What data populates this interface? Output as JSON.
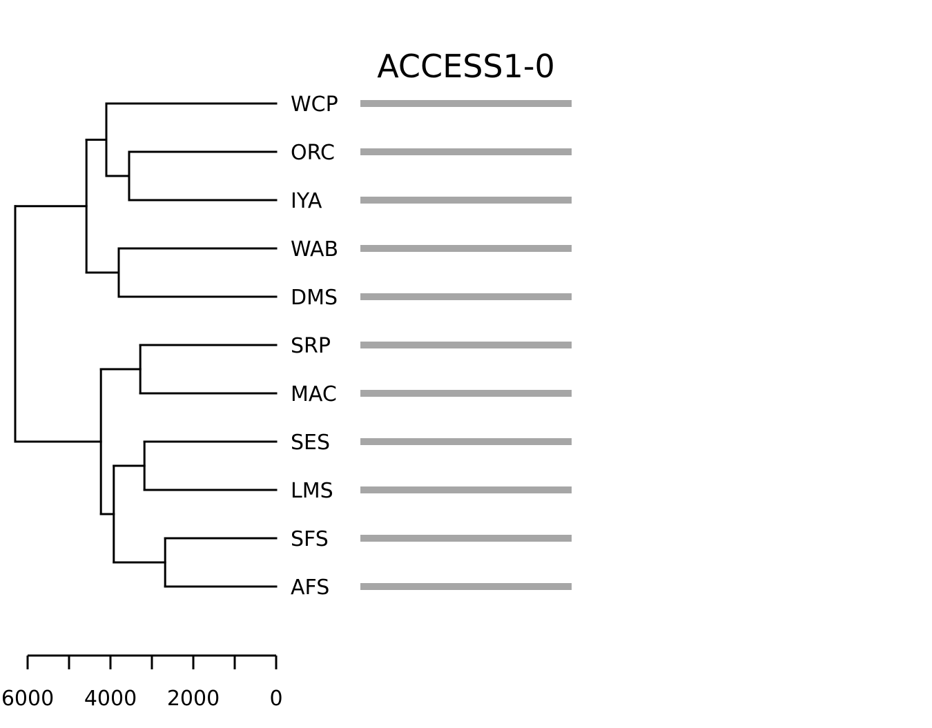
{
  "title": "ACCESS1-0",
  "leaves": [
    "WCP",
    "ORC",
    "IYA",
    "WAB",
    "DMS",
    "SRP",
    "MAC",
    "SES",
    "LMS",
    "SFS",
    "AFS"
  ],
  "tree": {
    "height": 6300,
    "children": [
      {
        "height": 4580,
        "children": [
          {
            "height": 4100,
            "children": [
              {
                "leaf": "WCP"
              },
              {
                "height": 3550,
                "children": [
                  {
                    "leaf": "ORC"
                  },
                  {
                    "leaf": "IYA"
                  }
                ]
              }
            ]
          },
          {
            "height": 3800,
            "children": [
              {
                "leaf": "WAB"
              },
              {
                "leaf": "DMS"
              }
            ]
          }
        ]
      },
      {
        "height": 4230,
        "children": [
          {
            "height": 3280,
            "children": [
              {
                "leaf": "SRP"
              },
              {
                "leaf": "MAC"
              }
            ]
          },
          {
            "height": 3920,
            "children": [
              {
                "height": 3180,
                "children": [
                  {
                    "leaf": "SES"
                  },
                  {
                    "leaf": "LMS"
                  }
                ]
              },
              {
                "height": 2680,
                "children": [
                  {
                    "leaf": "SFS"
                  },
                  {
                    "leaf": "AFS"
                  }
                ]
              }
            ]
          }
        ]
      }
    ]
  },
  "scale_axis": {
    "range": [
      6000,
      0
    ],
    "minor_step": 1000,
    "tick_labels": [
      "6000",
      "4000",
      "2000",
      "0"
    ]
  },
  "colors": {
    "branch": "#000000",
    "bar": "#a6a6a6"
  }
}
